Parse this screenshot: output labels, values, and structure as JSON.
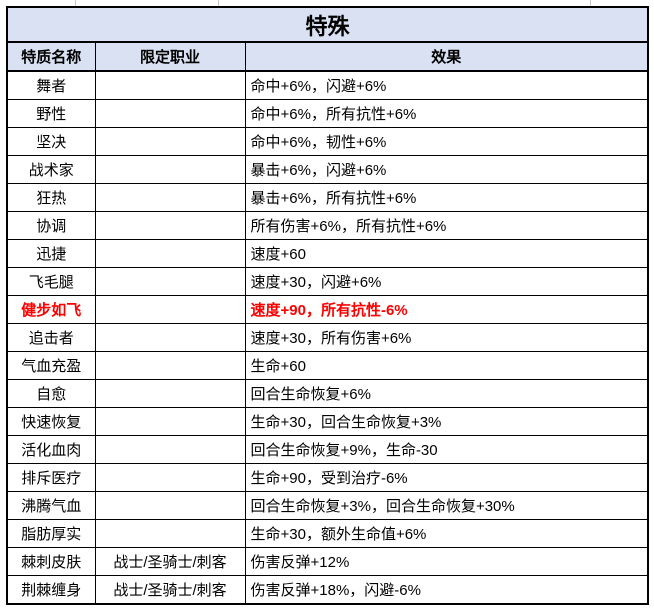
{
  "title": "特殊",
  "columns": [
    "特质名称",
    "限定职业",
    "效果"
  ],
  "colors": {
    "header_bg": "#d9e1f2",
    "border": "#000000",
    "highlight_text": "#ff0000"
  },
  "rows": [
    {
      "name": "舞者",
      "restricted_class": "",
      "effect": "命中+6%，闪避+6%",
      "highlight": false
    },
    {
      "name": "野性",
      "restricted_class": "",
      "effect": "命中+6%，所有抗性+6%",
      "highlight": false
    },
    {
      "name": "坚决",
      "restricted_class": "",
      "effect": "命中+6%，韧性+6%",
      "highlight": false
    },
    {
      "name": "战术家",
      "restricted_class": "",
      "effect": "暴击+6%，闪避+6%",
      "highlight": false
    },
    {
      "name": "狂热",
      "restricted_class": "",
      "effect": "暴击+6%，所有抗性+6%",
      "highlight": false
    },
    {
      "name": "协调",
      "restricted_class": "",
      "effect": "所有伤害+6%，所有抗性+6%",
      "highlight": false
    },
    {
      "name": "迅捷",
      "restricted_class": "",
      "effect": "速度+60",
      "highlight": false
    },
    {
      "name": "飞毛腿",
      "restricted_class": "",
      "effect": "速度+30，闪避+6%",
      "highlight": false
    },
    {
      "name": "健步如飞",
      "restricted_class": "",
      "effect": "速度+90，所有抗性-6%",
      "highlight": true
    },
    {
      "name": "追击者",
      "restricted_class": "",
      "effect": "速度+30，所有伤害+6%",
      "highlight": false
    },
    {
      "name": "气血充盈",
      "restricted_class": "",
      "effect": "生命+60",
      "highlight": false
    },
    {
      "name": "自愈",
      "restricted_class": "",
      "effect": "回合生命恢复+6%",
      "highlight": false
    },
    {
      "name": "快速恢复",
      "restricted_class": "",
      "effect": "生命+30，回合生命恢复+3%",
      "highlight": false
    },
    {
      "name": "活化血肉",
      "restricted_class": "",
      "effect": "回合生命恢复+9%，生命-30",
      "highlight": false
    },
    {
      "name": "排斥医疗",
      "restricted_class": "",
      "effect": "生命+90，受到治疗-6%",
      "highlight": false
    },
    {
      "name": "沸腾气血",
      "restricted_class": "",
      "effect": "回合生命恢复+3%，回合生命恢复+30%",
      "highlight": false
    },
    {
      "name": "脂肪厚实",
      "restricted_class": "",
      "effect": "生命+30，额外生命值+6%",
      "highlight": false
    },
    {
      "name": "棘刺皮肤",
      "restricted_class": "战士/圣骑士/刺客",
      "effect": "伤害反弹+12%",
      "highlight": false
    },
    {
      "name": "荆棘缠身",
      "restricted_class": "战士/圣骑士/刺客",
      "effect": "伤害反弹+18%，闪避-6%",
      "highlight": false
    }
  ]
}
